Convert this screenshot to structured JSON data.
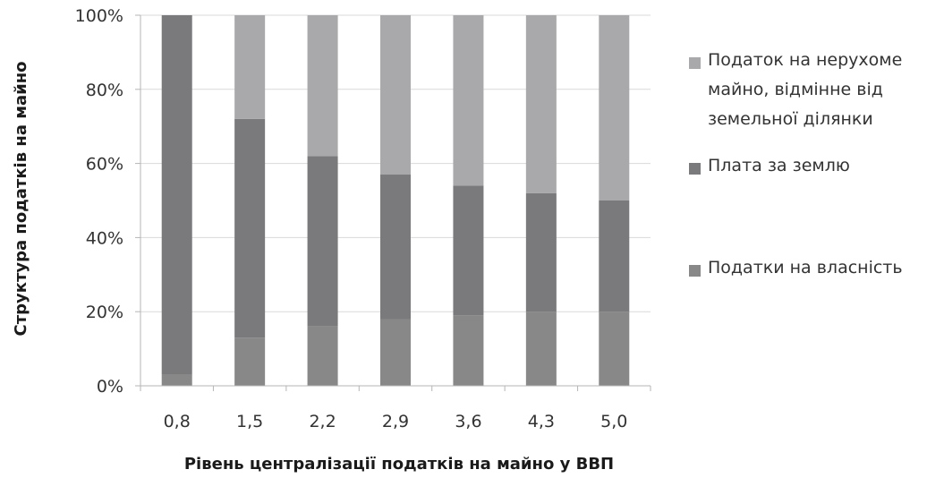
{
  "chart_data": {
    "type": "bar",
    "stacked": true,
    "categories": [
      "0,8",
      "1,5",
      "2,2",
      "2,9",
      "3,6",
      "4,3",
      "5,0"
    ],
    "series": [
      {
        "name": "Податки на власність",
        "color": "#888888",
        "values": [
          3,
          13,
          16,
          18,
          19,
          20,
          20
        ]
      },
      {
        "name": "Плата за землю",
        "color": "#7a7a7d",
        "values": [
          97,
          59,
          46,
          39,
          35,
          32,
          30
        ]
      },
      {
        "name": "Податок на нерухоме майно, відмінне від земельної ділянки",
        "color": "#a9a9ab",
        "values": [
          0,
          28,
          38,
          43,
          46,
          48,
          50
        ]
      }
    ],
    "legend_order": [
      2,
      1,
      0
    ],
    "yticks": [
      "0%",
      "20%",
      "40%",
      "60%",
      "80%",
      "100%"
    ],
    "ylim": [
      0,
      100
    ],
    "xlabel": "Рівень централізації податків на майно у ВВП",
    "ylabel": "Структура податків на майно",
    "grid": true,
    "legend_position": "right"
  }
}
